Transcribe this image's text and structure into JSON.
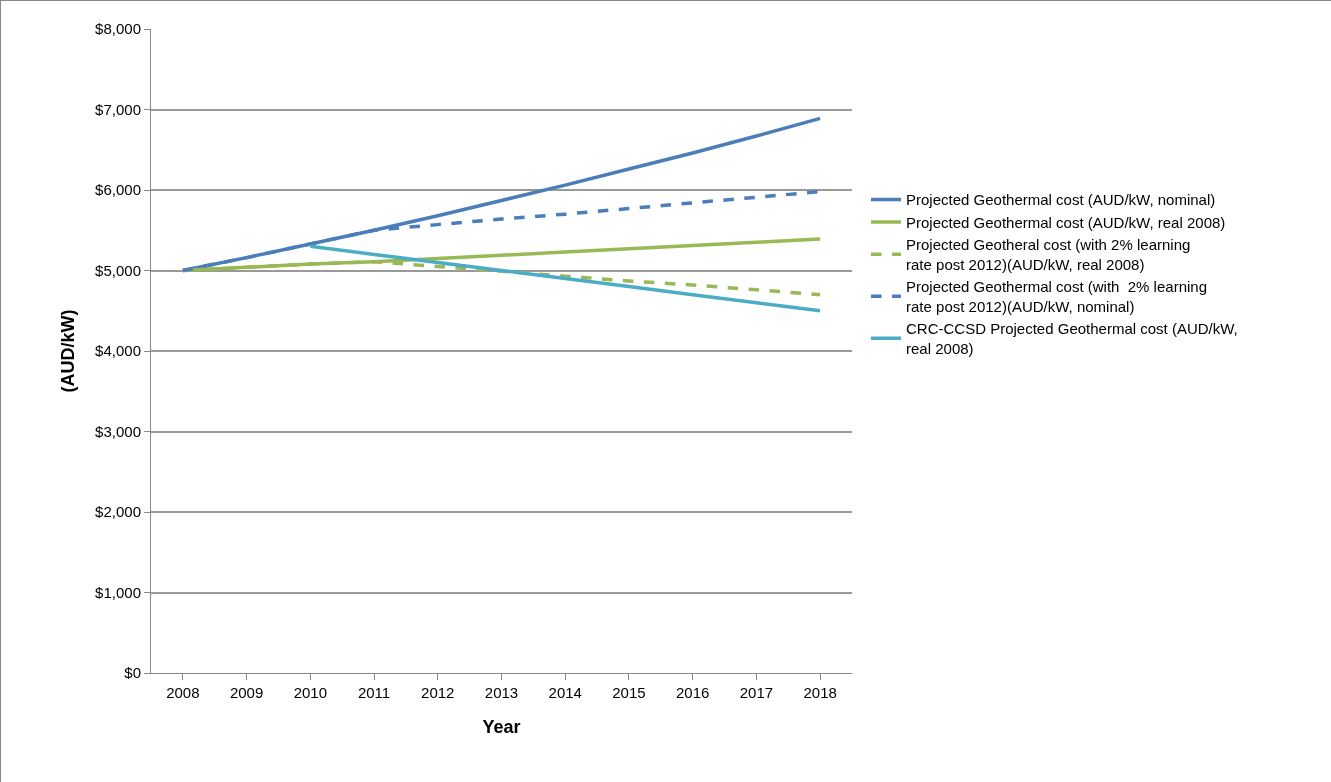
{
  "chart_data": {
    "type": "line",
    "xlabel": "Year",
    "ylabel": "(AUD/kW)",
    "categories": [
      "2008",
      "2009",
      "2010",
      "2011",
      "2012",
      "2013",
      "2014",
      "2015",
      "2016",
      "2017",
      "2018"
    ],
    "series": [
      {
        "name": "Projected Geothermal cost (AUD/kW, nominal)",
        "color": "#4a7ebb",
        "line_style": "solid",
        "values": [
          5000,
          5160,
          5330,
          5500,
          5680,
          5870,
          6060,
          6260,
          6460,
          6670,
          6890
        ]
      },
      {
        "name": "Projected Geothermal cost (AUD/kW, real 2008)",
        "color": "#98b954",
        "line_style": "solid",
        "values": [
          5000,
          5040,
          5080,
          5110,
          5150,
          5190,
          5230,
          5270,
          5310,
          5350,
          5390
        ]
      },
      {
        "name": "Projected Geotheral cost (with 2% learning rate post 2012)(AUD/kW, real 2008)",
        "color": "#98b954",
        "line_style": "dashed",
        "values": [
          5000,
          5040,
          5080,
          5110,
          5050,
          4990,
          4930,
          4870,
          4820,
          4760,
          4700
        ]
      },
      {
        "name": "Projected Geothermal cost (with  2% learning rate post 2012)(AUD/kW, nominal)",
        "color": "#4a7ebb",
        "line_style": "dashed",
        "values": [
          5000,
          5160,
          5330,
          5500,
          5570,
          5640,
          5700,
          5770,
          5840,
          5910,
          5980
        ]
      },
      {
        "name": "CRC-CCSD Projected Geothermal cost (AUD/kW, real 2008)",
        "color": "#4bacc6",
        "line_style": "solid",
        "values": [
          null,
          null,
          5300,
          5200,
          5100,
          5000,
          4900,
          4800,
          4700,
          4600,
          4500
        ]
      }
    ],
    "ylim": [
      0,
      8000
    ],
    "yticks": [
      {
        "value": 0,
        "label": "$0"
      },
      {
        "value": 1000,
        "label": "$1,000"
      },
      {
        "value": 2000,
        "label": "$2,000"
      },
      {
        "value": 3000,
        "label": "$3,000"
      },
      {
        "value": 4000,
        "label": "$4,000"
      },
      {
        "value": 5000,
        "label": "$5,000"
      },
      {
        "value": 6000,
        "label": "$6,000"
      },
      {
        "value": 7000,
        "label": "$7,000"
      },
      {
        "value": 8000,
        "label": "$8,000"
      }
    ],
    "grid": "y",
    "legend": "right",
    "marker": "none"
  }
}
